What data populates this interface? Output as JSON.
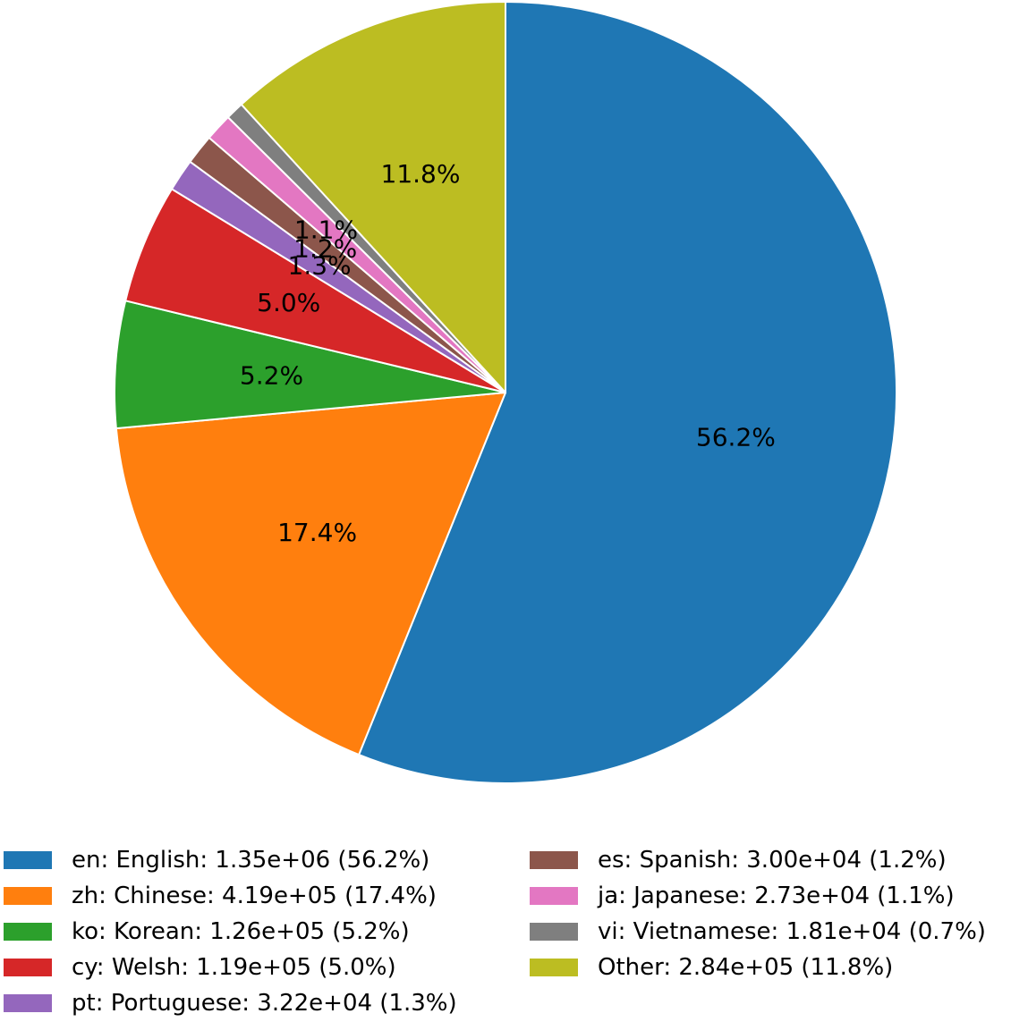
{
  "chart_data": {
    "type": "pie",
    "start_angle_deg": 90,
    "direction": "clockwise",
    "slices": [
      {
        "label": "en: English",
        "value": 1350000,
        "pct_label": "56.2%",
        "legend": "en: English: 1.35e+06 (56.2%)",
        "color": "#1f77b4"
      },
      {
        "label": "zh: Chinese",
        "value": 419000,
        "pct_label": "17.4%",
        "legend": "zh: Chinese: 4.19e+05 (17.4%)",
        "color": "#ff7f0e"
      },
      {
        "label": "ko: Korean",
        "value": 126000,
        "pct_label": "5.2%",
        "legend": "ko: Korean: 1.26e+05 (5.2%)",
        "color": "#2ca02c"
      },
      {
        "label": "cy: Welsh",
        "value": 119000,
        "pct_label": "5.0%",
        "legend": "cy: Welsh: 1.19e+05 (5.0%)",
        "color": "#d62728"
      },
      {
        "label": "pt: Portuguese",
        "value": 32200,
        "pct_label": "1.3%",
        "legend": "pt: Portuguese: 3.22e+04 (1.3%)",
        "color": "#9467bd"
      },
      {
        "label": "es: Spanish",
        "value": 30000,
        "pct_label": "1.2%",
        "legend": "es: Spanish: 3.00e+04 (1.2%)",
        "color": "#8c564b"
      },
      {
        "label": "ja: Japanese",
        "value": 27300,
        "pct_label": "1.1%",
        "legend": "ja: Japanese: 2.73e+04 (1.1%)",
        "color": "#e377c2"
      },
      {
        "label": "vi: Vietnamese",
        "value": 18100,
        "pct_label": "",
        "legend": "vi: Vietnamese: 1.81e+04 (0.7%)",
        "color": "#7f7f7f"
      },
      {
        "label": "Other",
        "value": 284000,
        "pct_label": "11.8%",
        "legend": "Other: 2.84e+05 (11.8%)",
        "color": "#bcbd22"
      }
    ],
    "legend_position": "bottom",
    "legend_columns": 2
  }
}
